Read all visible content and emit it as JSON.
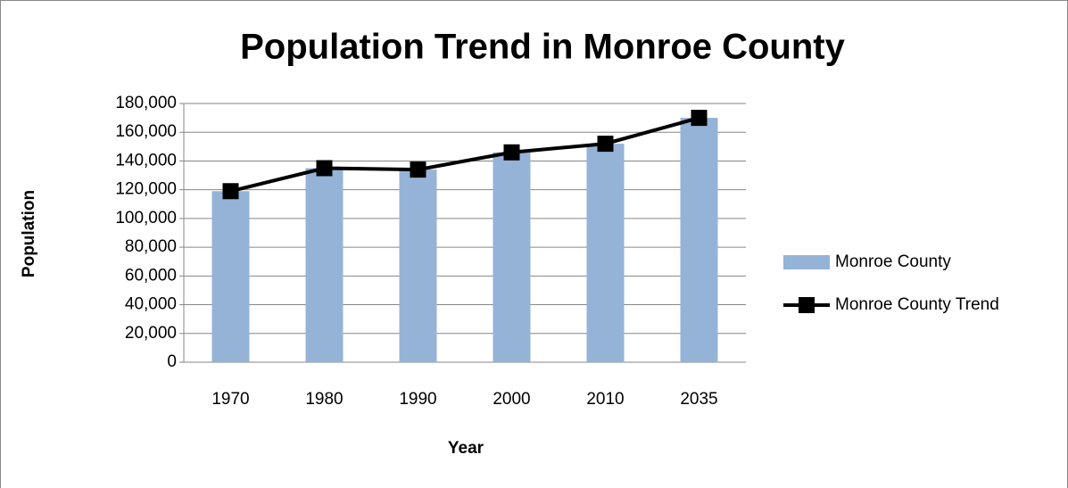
{
  "chart_data": {
    "type": "combo",
    "title": "Population Trend in Monroe County",
    "x_label": "Year",
    "y_label": "Population",
    "categories": [
      "1970",
      "1980",
      "1990",
      "2000",
      "2010",
      "2035"
    ],
    "series": [
      {
        "name": "Monroe County",
        "type": "bar",
        "color": "#95b3d7",
        "values": [
          119000,
          135000,
          134000,
          146000,
          152000,
          170000
        ]
      },
      {
        "name": "Monroe County Trend",
        "type": "line",
        "color": "#000000",
        "values": [
          119000,
          135000,
          134000,
          146000,
          152000,
          170000
        ]
      }
    ],
    "ylim": [
      0,
      180000
    ],
    "yticks": [
      0,
      {
        "value": 20000,
        "label": "20,000"
      },
      {
        "value": 40000,
        "label": "40,000"
      },
      {
        "value": 60000,
        "label": "60,000"
      },
      {
        "value": 80000,
        "label": "80,000"
      },
      {
        "value": 100000,
        "label": "100,000"
      },
      {
        "value": 120000,
        "label": "120,000"
      },
      {
        "value": 140000,
        "label": "140,000"
      },
      {
        "value": 160000,
        "label": "160,000"
      },
      {
        "value": 180000,
        "label": "180,000"
      }
    ],
    "grid": true,
    "legend": "right"
  }
}
